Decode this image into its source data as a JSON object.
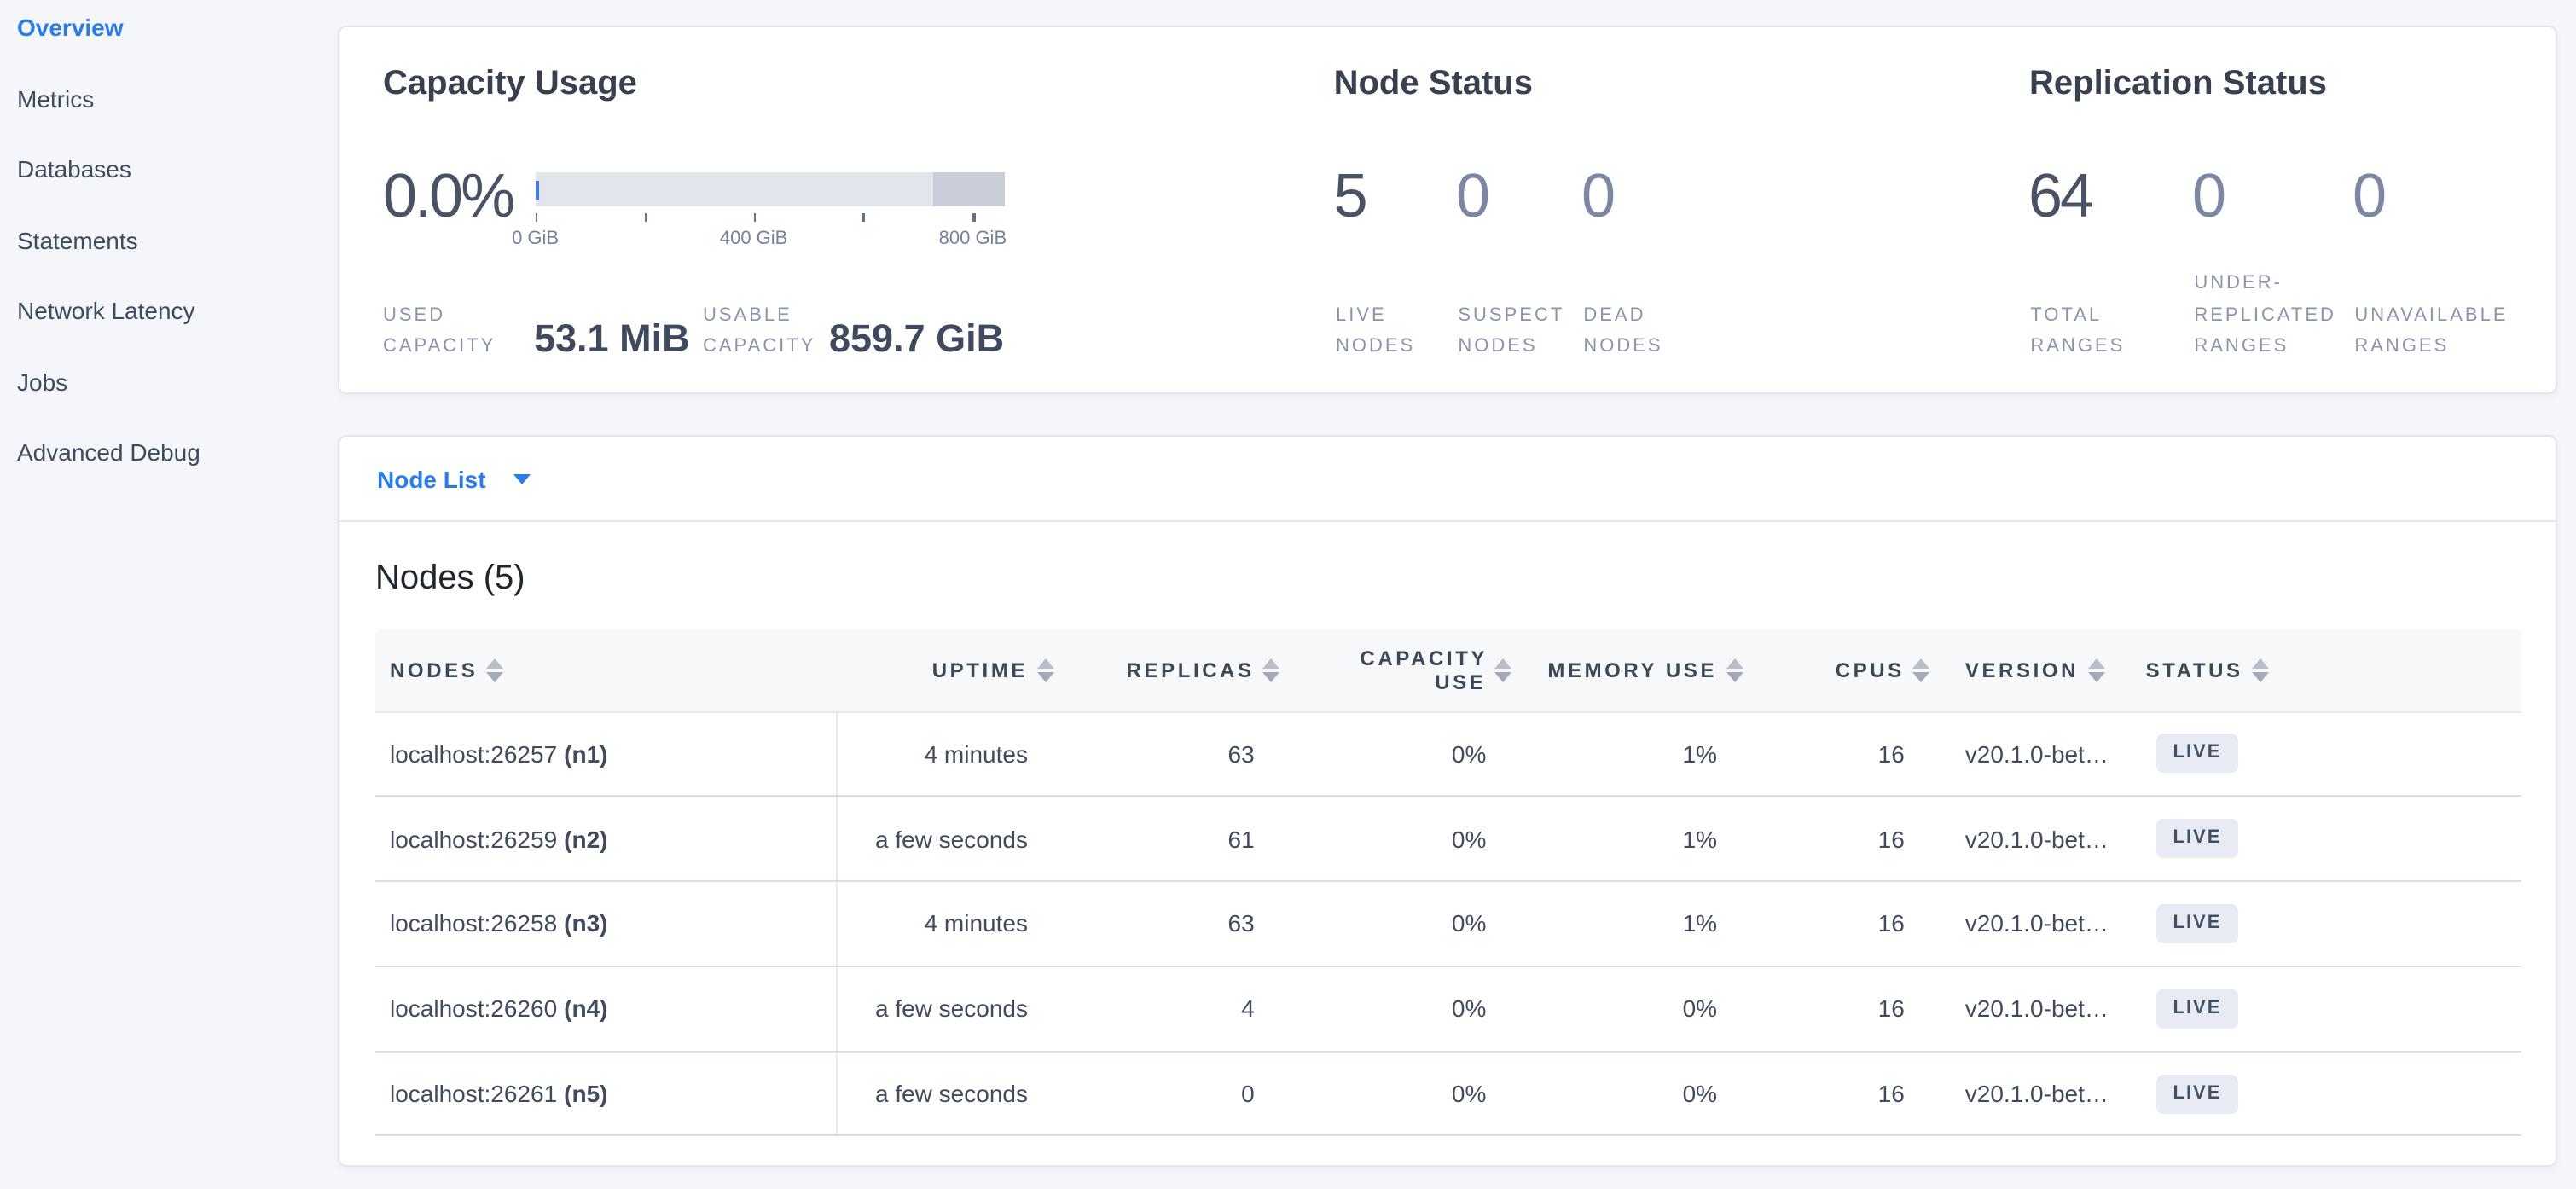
{
  "sidebar": {
    "items": [
      {
        "label": "Overview",
        "active": true
      },
      {
        "label": "Metrics"
      },
      {
        "label": "Databases"
      },
      {
        "label": "Statements"
      },
      {
        "label": "Network Latency"
      },
      {
        "label": "Jobs"
      },
      {
        "label": "Advanced Debug"
      }
    ]
  },
  "capacity": {
    "title": "Capacity Usage",
    "percent": "0.0%",
    "axis_ticks": [
      "0 GiB",
      "400 GiB",
      "800 GiB"
    ],
    "used": {
      "label": "USED CAPACITY",
      "value": "53.1 MiB"
    },
    "usable": {
      "label": "USABLE CAPACITY",
      "value": "859.7 GiB"
    }
  },
  "node_status": {
    "title": "Node Status",
    "metrics": [
      {
        "value": "5",
        "label": "LIVE NODES"
      },
      {
        "value": "0",
        "label": "SUSPECT NODES"
      },
      {
        "value": "0",
        "label": "DEAD NODES"
      }
    ]
  },
  "replication_status": {
    "title": "Replication Status",
    "metrics": [
      {
        "value": "64",
        "label": "TOTAL RANGES"
      },
      {
        "value": "0",
        "label": "UNDER-REPLICATED RANGES"
      },
      {
        "value": "0",
        "label": "UNAVAILABLE RANGES"
      }
    ]
  },
  "node_list": {
    "selector_label": "Node List",
    "table_title": "Nodes (5)",
    "columns": [
      "NODES",
      "UPTIME",
      "REPLICAS",
      "CAPACITY USE",
      "MEMORY USE",
      "CPUS",
      "VERSION",
      "STATUS"
    ],
    "rows": [
      {
        "address": "localhost:26257",
        "id": "(n1)",
        "uptime": "4 minutes",
        "replicas": "63",
        "capacity_use": "0%",
        "memory_use": "1%",
        "cpus": "16",
        "version": "v20.1.0-bet…",
        "status": "LIVE"
      },
      {
        "address": "localhost:26259",
        "id": "(n2)",
        "uptime": "a few seconds",
        "replicas": "61",
        "capacity_use": "0%",
        "memory_use": "1%",
        "cpus": "16",
        "version": "v20.1.0-bet…",
        "status": "LIVE"
      },
      {
        "address": "localhost:26258",
        "id": "(n3)",
        "uptime": "4 minutes",
        "replicas": "63",
        "capacity_use": "0%",
        "memory_use": "1%",
        "cpus": "16",
        "version": "v20.1.0-bet…",
        "status": "LIVE"
      },
      {
        "address": "localhost:26260",
        "id": "(n4)",
        "uptime": "a few seconds",
        "replicas": "4",
        "capacity_use": "0%",
        "memory_use": "0%",
        "cpus": "16",
        "version": "v20.1.0-bet…",
        "status": "LIVE"
      },
      {
        "address": "localhost:26261",
        "id": "(n5)",
        "uptime": "a few seconds",
        "replicas": "0",
        "capacity_use": "0%",
        "memory_use": "0%",
        "cpus": "16",
        "version": "v20.1.0-bet…",
        "status": "LIVE"
      }
    ]
  },
  "colors": {
    "accent_blue": "#2b7ce9",
    "bar_background": "#e2e5eb",
    "bar_other_segment": "#c9cdd7",
    "badge_background": "#e8ebf3"
  }
}
